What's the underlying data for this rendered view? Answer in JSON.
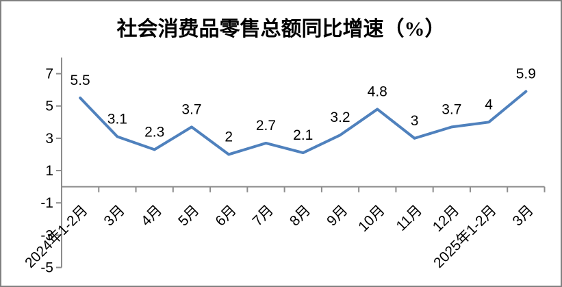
{
  "frame": {
    "border_color": "#808080",
    "background_color": "#FFFFFF"
  },
  "chart_data": {
    "type": "line",
    "title": "社会消费品零售总额同比增速（%）",
    "categories": [
      "2024年1-2月",
      "3月",
      "4月",
      "5月",
      "6月",
      "7月",
      "8月",
      "9月",
      "10月",
      "11月",
      "12月",
      "2025年1-2月",
      "3月"
    ],
    "values": [
      5.5,
      3.1,
      2.3,
      3.7,
      2,
      2.7,
      2.1,
      3.2,
      4.8,
      3,
      3.7,
      4,
      5.9
    ],
    "data_labels": [
      "5.5",
      "3.1",
      "2.3",
      "3.7",
      "2",
      "2.7",
      "2.1",
      "3.2",
      "4.8",
      "3",
      "3.7",
      "4",
      "5.9"
    ],
    "y_ticks": [
      7,
      5,
      3,
      1,
      -1,
      -3,
      -5
    ],
    "ylim": [
      -5,
      8
    ],
    "xlabel": "",
    "ylabel": "",
    "legend": "none",
    "grid": false,
    "line_color": "#4F81BD",
    "axis_color": "#8C8C8C",
    "text_color": "#000000"
  }
}
